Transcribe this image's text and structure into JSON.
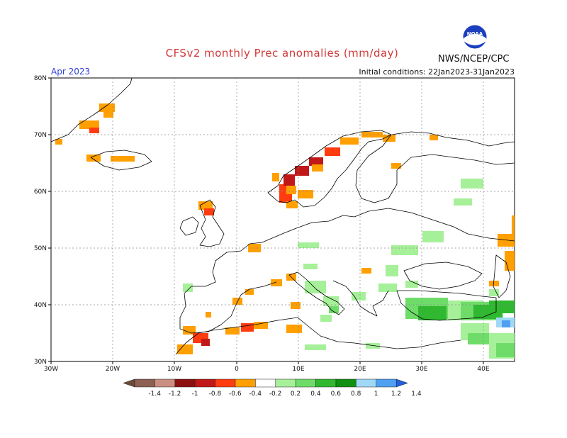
{
  "title": "CFSv2 monthly Prec anomalies (mm/day)",
  "month": "Apr 2023",
  "initial_conditions": "Initial conditions: 22Jan2023-31Jan2023",
  "agency": "NWS/NCEP/CPC",
  "logo_text": "NOAA",
  "axes": {
    "lat_labels": [
      "30N",
      "40N",
      "50N",
      "60N",
      "70N",
      "80N"
    ],
    "lon_labels": [
      "30W",
      "20W",
      "10W",
      "0",
      "10E",
      "20E",
      "30E",
      "40E"
    ]
  },
  "colorbar": {
    "labels": [
      "-1.4",
      "-1.2",
      "-1",
      "-0.8",
      "-0.6",
      "-0.4",
      "-0.2",
      "0.2",
      "0.4",
      "0.6",
      "0.8",
      "1",
      "1.2",
      "1.4"
    ],
    "colors": [
      "#6b4a3a",
      "#8c6052",
      "#c98f80",
      "#8c1010",
      "#c01818",
      "#ff3c10",
      "#ff9f00",
      "#ffffff",
      "#a7f09a",
      "#6fdc6a",
      "#30b830",
      "#109010",
      "#a0d8f8",
      "#4fa0f0",
      "#2060e0"
    ]
  }
}
